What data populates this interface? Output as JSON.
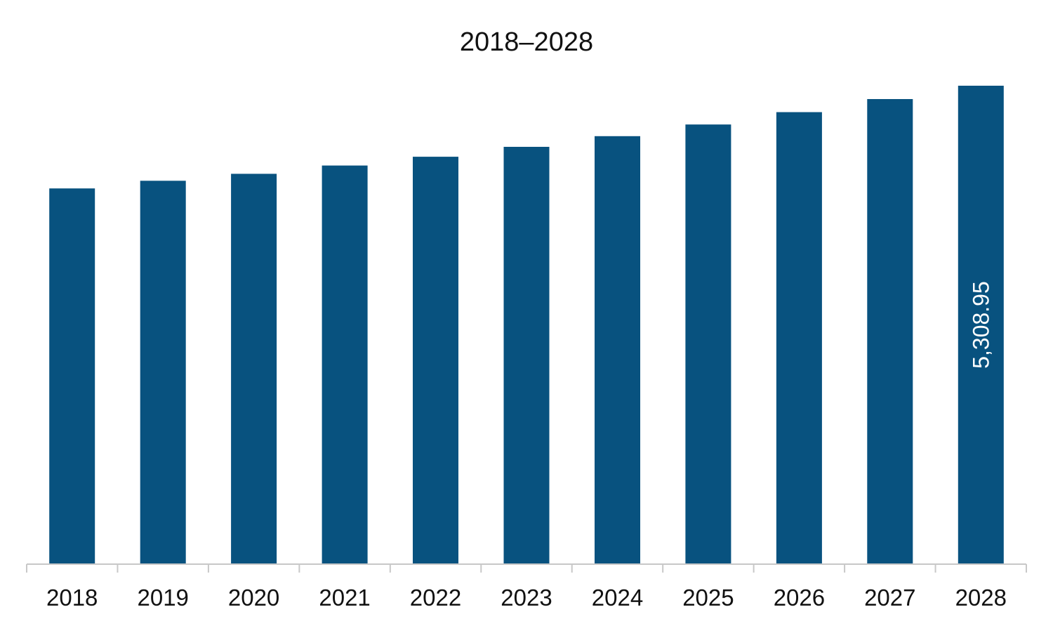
{
  "chart_data": {
    "type": "bar",
    "title": "2018–2028",
    "categories": [
      "2018",
      "2019",
      "2020",
      "2021",
      "2022",
      "2023",
      "2024",
      "2025",
      "2026",
      "2027",
      "2028"
    ],
    "values": [
      4169,
      4254,
      4331,
      4423,
      4521,
      4631,
      4749,
      4879,
      5016,
      5161,
      5308.95
    ],
    "data_labels": [
      "",
      "",
      "",
      "",
      "",
      "",
      "",
      "",
      "",
      "",
      "5,308.95"
    ],
    "xlabel": "",
    "ylabel": "",
    "ylim": [
      0,
      5308.95
    ],
    "grid": false,
    "legend": "none",
    "bar_color": "#08527f"
  }
}
